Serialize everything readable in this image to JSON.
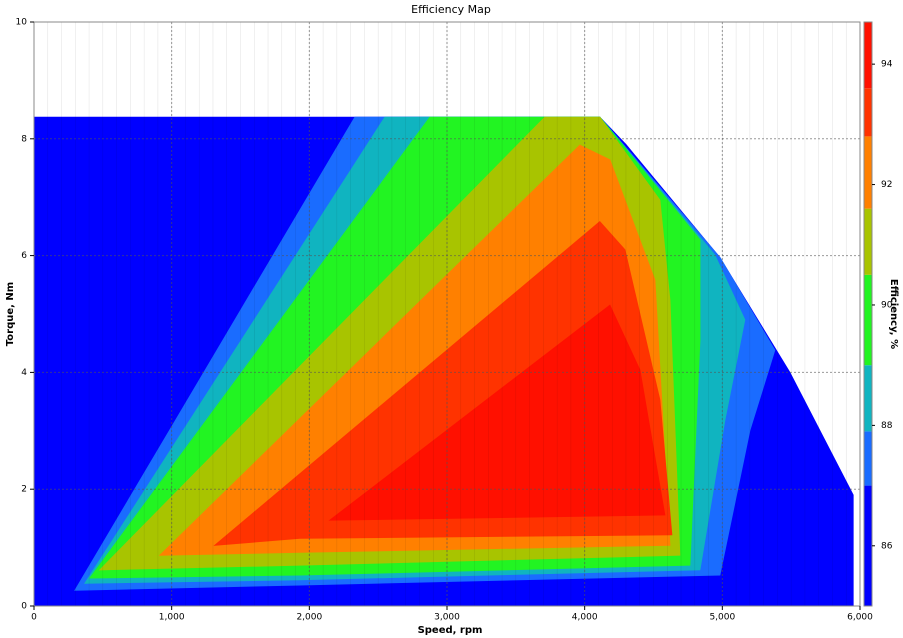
{
  "chart_data": {
    "type": "contour",
    "title": "Efficiency Map",
    "x_label": "Speed, rpm",
    "y_label": "Torque, Nm",
    "colorbar_label": "Efficiency, %",
    "xlim": [
      0,
      6000
    ],
    "xticks": [
      0,
      {
        "value": 1000,
        "label": "1,000"
      },
      {
        "value": 2000,
        "label": "2,000"
      },
      {
        "value": 3000,
        "label": "3,000"
      },
      {
        "value": 4000,
        "label": "4,000"
      },
      {
        "value": 5000,
        "label": "5,000"
      },
      {
        "value": 6000,
        "label": "6,000"
      }
    ],
    "ylim": [
      0,
      10
    ],
    "yticks": [
      0,
      2,
      4,
      6,
      8,
      10
    ],
    "clim": [
      85,
      94.7
    ],
    "cticks": [
      86,
      88,
      90,
      92,
      94
    ],
    "grid": true,
    "regions": [
      {
        "level": 85,
        "color": "#0000ff",
        "points": [
          [
            0,
            0
          ],
          [
            0,
            8.37
          ],
          [
            4110,
            8.37
          ],
          [
            4300,
            7.9
          ],
          [
            4980,
            5.97
          ],
          [
            5490,
            4
          ],
          [
            5950,
            1.9
          ],
          [
            5950,
            0
          ]
        ]
      },
      {
        "level": 87,
        "color": "#1a6cff",
        "points": [
          [
            298,
            0.27
          ],
          [
            2331,
            8.37
          ],
          [
            4110,
            8.37
          ],
          [
            4982,
            5.97
          ],
          [
            5381,
            4.38
          ],
          [
            5200,
            3.01
          ],
          [
            4982,
            0.53
          ],
          [
            1932,
            0.36
          ]
        ]
      },
      {
        "level": 87.9,
        "color": "#10b4c0",
        "points": [
          [
            370,
            0.39
          ],
          [
            2549,
            8.37
          ],
          [
            4110,
            8.37
          ],
          [
            4945,
            6.01
          ],
          [
            5163,
            4.9
          ],
          [
            5018,
            3.18
          ],
          [
            4837,
            0.62
          ],
          [
            1932,
            0.45
          ]
        ]
      },
      {
        "level": 89,
        "color": "#22f422",
        "points": [
          [
            407,
            0.48
          ],
          [
            2876,
            8.37
          ],
          [
            4110,
            8.37
          ],
          [
            4837,
            6.27
          ],
          [
            4837,
            4.55
          ],
          [
            4764,
            0.7
          ],
          [
            1932,
            0.53
          ]
        ]
      },
      {
        "level": 90.5,
        "color": "#a8c400",
        "points": [
          [
            479,
            0.62
          ],
          [
            3711,
            8.37
          ],
          [
            4110,
            8.37
          ],
          [
            4546,
            6.95
          ],
          [
            4619,
            5.24
          ],
          [
            4691,
            0.87
          ],
          [
            1932,
            0.7
          ]
        ]
      },
      {
        "level": 91.6,
        "color": "#ff8000",
        "points": [
          [
            915,
            0.87
          ],
          [
            3965,
            7.89
          ],
          [
            4183,
            7.64
          ],
          [
            4510,
            5.58
          ],
          [
            4619,
            1.04
          ],
          [
            1932,
            0.92
          ]
        ]
      },
      {
        "level": 92.8,
        "color": "#ff3300",
        "points": [
          [
            1314,
            1.04
          ],
          [
            4110,
            6.58
          ],
          [
            4292,
            6.1
          ],
          [
            4546,
            3.53
          ],
          [
            4633,
            1.22
          ],
          [
            1932,
            1.16
          ]
        ]
      },
      {
        "level": 93.6,
        "color": "#ff1000",
        "points": [
          [
            2150,
            1.47
          ],
          [
            4183,
            5.15
          ],
          [
            4401,
            4.04
          ],
          [
            4582,
            1.56
          ]
        ]
      }
    ]
  }
}
